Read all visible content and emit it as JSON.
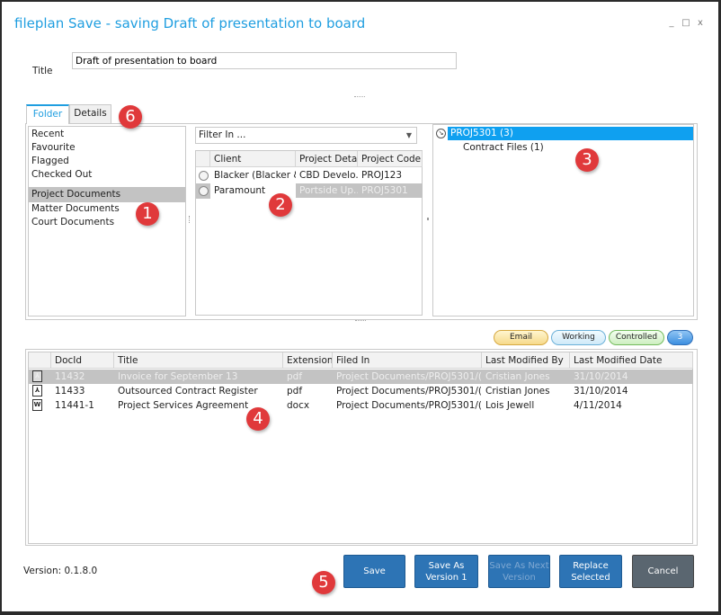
{
  "window": {
    "title": "fileplan Save - saving Draft of presentation to board",
    "minimize": "_",
    "maximize": "□",
    "close": "x"
  },
  "form": {
    "title_label": "Title",
    "title_value": "Draft of presentation to board"
  },
  "tabs": [
    {
      "label": "Folder",
      "active": true
    },
    {
      "label": "Details",
      "active": false
    }
  ],
  "locations": [
    "Recent",
    "Favourite",
    "Flagged",
    "Checked Out",
    "Project Documents",
    "Matter Documents",
    "Court Documents"
  ],
  "selected_location": "Project Documents",
  "filter": {
    "value": "Filter In ..."
  },
  "projects": {
    "columns": [
      "Client",
      "Project Detail",
      "Project Code"
    ],
    "rows": [
      {
        "client": "Blacker (Blacker &",
        "detail": "CBD Develo...",
        "code": "PROJ123"
      },
      {
        "client": "Paramount",
        "detail": "Portside Up...",
        "code": "PROJ5301",
        "selected": true
      }
    ]
  },
  "tree": [
    {
      "label": "PROJ5301 (3)",
      "selected": true
    },
    {
      "label": "Contract Files (1)"
    }
  ],
  "filters": {
    "email": "Email",
    "working": "Working",
    "controlled": "Controlled",
    "count": "3"
  },
  "documents": {
    "columns": [
      "DocId",
      "Title",
      "Extension",
      "Filed In",
      "Last Modified By",
      "Last Modified Date"
    ],
    "rows": [
      {
        "icon": "pdf-icon",
        "docid": "11432",
        "title": "Invoice for September 13",
        "ext": "pdf",
        "filed": "Project Documents/PROJ5301/(P...",
        "by": "Cristian Jones",
        "date": "31/10/2014",
        "selected": true
      },
      {
        "icon": "pdf-icon",
        "docid": "11433",
        "title": "Outsourced Contract Register",
        "ext": "pdf",
        "filed": "Project Documents/PROJ5301/(P...",
        "by": "Cristian Jones",
        "date": "31/10/2014"
      },
      {
        "icon": "word-icon",
        "docid": "11441-1",
        "title": "Project Services Agreement",
        "ext": "docx",
        "filed": "Project Documents/PROJ5301/(P...",
        "by": "Lois Jewell",
        "date": "4/11/2014"
      }
    ]
  },
  "footer": {
    "version": "Version: 0.1.8.0",
    "save": "Save",
    "save_as_version": "Save As Version 1",
    "save_as_next": "Save As Next Version",
    "replace": "Replace Selected",
    "cancel": "Cancel"
  },
  "callouts": [
    "1",
    "2",
    "3",
    "4",
    "5",
    "6"
  ],
  "colors": {
    "accent": "#1f9ee0",
    "button": "#2d74b5",
    "cancel": "#5a6670",
    "tree_selected": "#0fa0f0",
    "callout": "#e0393b"
  }
}
